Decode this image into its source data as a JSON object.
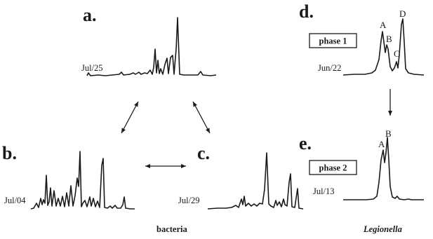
{
  "panels": {
    "a": {
      "letter": "a.",
      "date": "Jul/25"
    },
    "b": {
      "letter": "b.",
      "date": "Jul/04"
    },
    "c": {
      "letter": "c.",
      "date": "Jul/29"
    },
    "d": {
      "letter": "d.",
      "date": "Jun/22",
      "phase": "phase 1",
      "peaks": {
        "A": "A",
        "B": "B",
        "C": "C",
        "D": "D"
      }
    },
    "e": {
      "letter": "e.",
      "date": "Jul/13",
      "phase": "phase 2",
      "peaks": {
        "A": "A",
        "B": "B"
      }
    }
  },
  "captions": {
    "bacteria": "bacteria",
    "legionella": "Legionella"
  },
  "colors": {
    "ink": "#1a1a1a",
    "background": "#ffffff"
  }
}
